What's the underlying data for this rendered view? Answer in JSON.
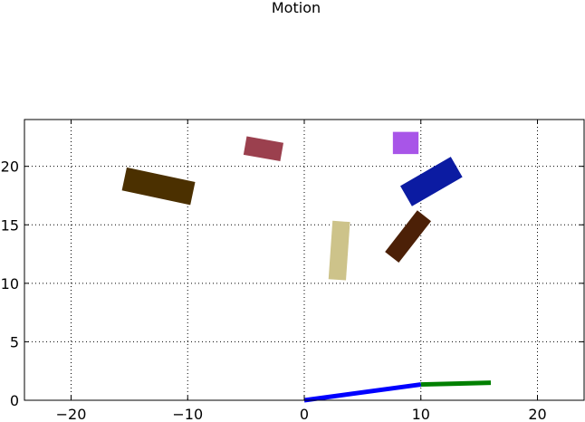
{
  "chart_data": {
    "type": "scatter",
    "title": "Motion",
    "xlabel": "",
    "ylabel": "",
    "xlim": [
      -24,
      24
    ],
    "ylim": [
      0,
      24
    ],
    "grid": true,
    "xticks": [
      -20,
      -10,
      0,
      10,
      20
    ],
    "xtick_labels": [
      "−20",
      "−10",
      "0",
      "10",
      "20"
    ],
    "yticks": [
      0,
      5,
      10,
      15,
      20
    ],
    "ytick_labels": [
      "0",
      "5",
      "10",
      "15",
      "20"
    ],
    "links": [
      {
        "x1": 0.0,
        "y1": 0.0,
        "x2": 10.0,
        "y2": 1.35,
        "color": "#0000ff"
      },
      {
        "x1": 10.0,
        "y1": 1.35,
        "x2": 16.0,
        "y2": 1.5,
        "color": "#008000"
      }
    ],
    "boxes": [
      {
        "cx": -12.5,
        "cy": 18.3,
        "length": 6.0,
        "width": 2.0,
        "angle_deg": -12,
        "color": "#4b3000"
      },
      {
        "cx": -3.5,
        "cy": 21.5,
        "length": 3.2,
        "width": 1.6,
        "angle_deg": -10,
        "color": "#9b404e"
      },
      {
        "cx": 3.0,
        "cy": 12.8,
        "length": 5.0,
        "width": 1.5,
        "angle_deg": 86,
        "color": "#cdc38a"
      },
      {
        "cx": 8.7,
        "cy": 22.0,
        "length": 2.2,
        "width": 1.9,
        "angle_deg": 0,
        "color": "#a855e8"
      },
      {
        "cx": 10.9,
        "cy": 18.7,
        "length": 5.0,
        "width": 2.0,
        "angle_deg": 30,
        "color": "#0b1ba2"
      },
      {
        "cx": 8.9,
        "cy": 14.0,
        "length": 4.5,
        "width": 1.5,
        "angle_deg": 52,
        "color": "#4c2007"
      }
    ]
  }
}
